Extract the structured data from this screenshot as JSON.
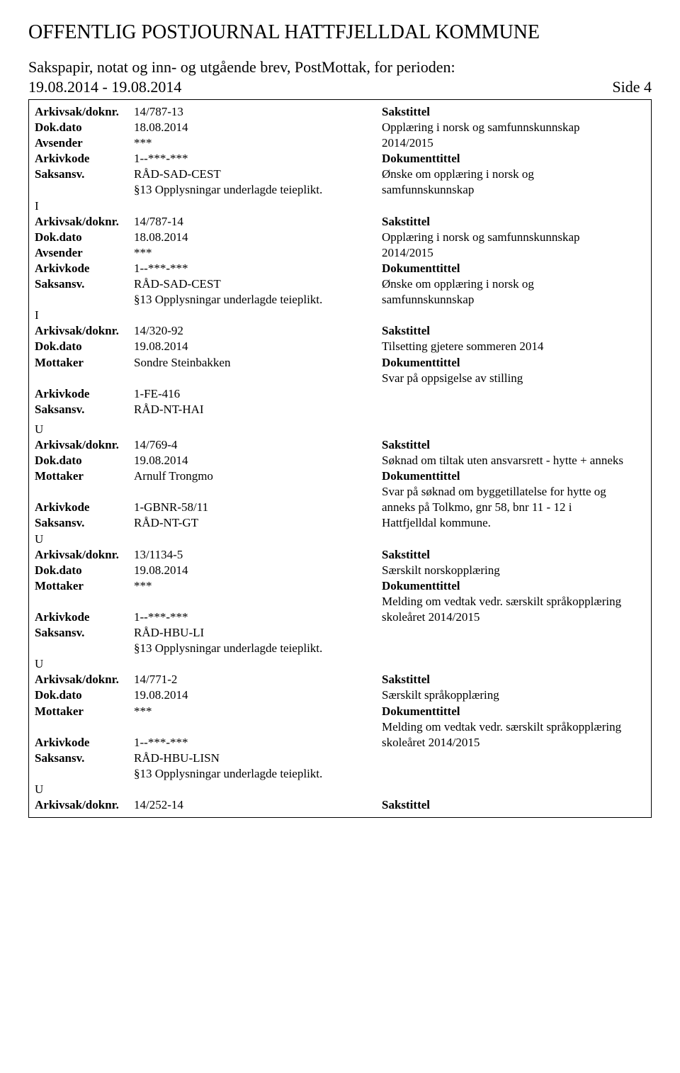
{
  "header": {
    "mainTitle": "OFFENTLIG POSTJOURNAL HATTFJELLDAL KOMMUNE",
    "subtitle": "Sakspapir, notat og inn- og utgående brev, PostMottak, for perioden:",
    "dateRange": "19.08.2014 - 19.08.2014",
    "pageNumber": "Side 4"
  },
  "labels": {
    "arkivsak": "Arkivsak/doknr.",
    "dokdato": "Dok.dato",
    "avsender": "Avsender",
    "mottaker": "Mottaker",
    "arkivkode": "Arkivkode",
    "saksansv": "Saksansv.",
    "sakstittel": "Sakstittel",
    "dokumenttittel": "Dokumenttittel"
  },
  "entries": [
    {
      "arkivsak": "14/787-13",
      "dokdato": "18.08.2014",
      "partyLabel": "Avsender",
      "party": "***",
      "arkivkode": "1--***-***",
      "saksansv": "RÅD-SAD-CEST",
      "saksansvExtra": "§13 Opplysningar underlagde teieplikt.",
      "io": "I",
      "sakstittelLines": [
        "Opplæring i norsk og samfunnskunnskap",
        "2014/2015"
      ],
      "dokumenttittelLines": [
        "Ønske om opplæring i norsk og",
        "samfunnskunnskap"
      ]
    },
    {
      "arkivsak": "14/787-14",
      "dokdato": "18.08.2014",
      "partyLabel": "Avsender",
      "party": "***",
      "arkivkode": "1--***-***",
      "saksansv": "RÅD-SAD-CEST",
      "saksansvExtra": "§13 Opplysningar underlagde teieplikt.",
      "io": "I",
      "sakstittelLines": [
        "Opplæring i norsk og samfunnskunnskap",
        "2014/2015"
      ],
      "dokumenttittelLines": [
        "Ønske om opplæring i norsk og",
        "samfunnskunnskap"
      ]
    },
    {
      "arkivsak": "14/320-92",
      "dokdato": "19.08.2014",
      "partyLabel": "Mottaker",
      "party": "Sondre  Steinbakken",
      "arkivkode": "1-FE-416",
      "saksansv": "RÅD-NT-HAI",
      "saksansvExtra": "",
      "io": "",
      "sakstittelLines": [
        "Tilsetting gjetere sommeren 2014"
      ],
      "dokumenttittelLines": [
        "Svar på oppsigelse av stilling"
      ],
      "blankBeforeDoc": true
    },
    {
      "preIo": "U",
      "arkivsak": "14/769-4",
      "dokdato": "19.08.2014",
      "partyLabel": "Mottaker",
      "party": "Arnulf Trongmo",
      "arkivkode": "1-GBNR-58/11",
      "saksansv": "RÅD-NT-GT",
      "saksansvExtra": "",
      "io": "U",
      "sakstittelLines": [
        "Søknad om tiltak uten ansvarsrett - hytte + anneks"
      ],
      "dokumenttittelLines": [
        "Svar på søknad om byggetillatelse for hytte og",
        "anneks på Tolkmo, gnr 58, bnr 11 - 12 i",
        "Hattfjelldal kommune."
      ],
      "blankBeforeDoc": true
    },
    {
      "arkivsak": "13/1134-5",
      "dokdato": "19.08.2014",
      "partyLabel": "Mottaker",
      "party": "***",
      "arkivkode": "1--***-***",
      "saksansv": "RÅD-HBU-LI",
      "saksansvExtra": "§13 Opplysningar underlagde teieplikt.",
      "io": "U",
      "sakstittelLines": [
        "Særskilt norskopplæring"
      ],
      "dokumenttittelLines": [
        "Melding om vedtak vedr. særskilt språkopplæring",
        "skoleåret 2014/2015"
      ],
      "blankBeforeArkiv": true
    },
    {
      "arkivsak": "14/771-2",
      "dokdato": "19.08.2014",
      "partyLabel": "Mottaker",
      "party": "***",
      "arkivkode": "1--***-***",
      "saksansv": "RÅD-HBU-LISN",
      "saksansvExtra": "§13 Opplysningar underlagde teieplikt.",
      "io": "U",
      "sakstittelLines": [
        "Særskilt språkopplæring"
      ],
      "dokumenttittelLines": [
        "Melding om vedtak vedr. særskilt språkopplæring",
        "skoleåret 2014/2015"
      ],
      "blankBeforeArkiv": true
    },
    {
      "arkivsak": "14/252-14",
      "lastPartial": true
    }
  ]
}
